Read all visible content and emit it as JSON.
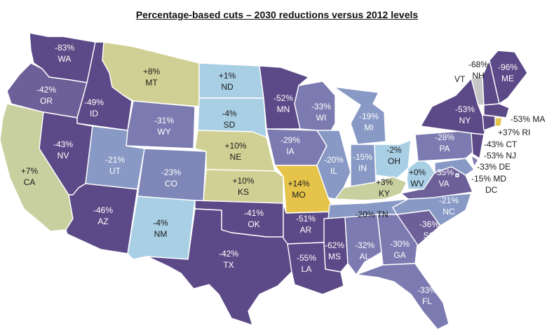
{
  "title": "Percentage-based cuts – 2030 reductions versus 2012 levels",
  "colors": {
    "very_dark": "#5b4a87",
    "dark": "#6d5f98",
    "medium": "#7f82b7",
    "light_blue": "#a9cfe5",
    "olive": "#d1d094",
    "gold": "#e6c44a",
    "gray": "#c6c6c6",
    "border": "#ffffff"
  },
  "states": [
    {
      "abbr": "WA",
      "value": "-83%",
      "color": "#5b4a87"
    },
    {
      "abbr": "OR",
      "value": "-42%",
      "color": "#6d5f98"
    },
    {
      "abbr": "CA",
      "value": "+7%",
      "color": "#c9d0a0"
    },
    {
      "abbr": "ID",
      "value": "-49%",
      "color": "#5b4a87"
    },
    {
      "abbr": "NV",
      "value": "-43%",
      "color": "#5b4a87"
    },
    {
      "abbr": "MT",
      "value": "+8%",
      "color": "#d1d094"
    },
    {
      "abbr": "WY",
      "value": "-31%",
      "color": "#7c7bb1"
    },
    {
      "abbr": "UT",
      "value": "-21%",
      "color": "#8799c4"
    },
    {
      "abbr": "AZ",
      "value": "-46%",
      "color": "#5b4a87"
    },
    {
      "abbr": "CO",
      "value": "-23%",
      "color": "#7f87b8"
    },
    {
      "abbr": "NM",
      "value": "-4%",
      "color": "#a9cfe5"
    },
    {
      "abbr": "ND",
      "value": "+1%",
      "color": "#a9cfe5"
    },
    {
      "abbr": "SD",
      "value": "-4%",
      "color": "#a9cfe5"
    },
    {
      "abbr": "NE",
      "value": "+10%",
      "color": "#d1d094"
    },
    {
      "abbr": "KS",
      "value": "+10%",
      "color": "#d1d094"
    },
    {
      "abbr": "OK",
      "value": "-41%",
      "color": "#5b4a87"
    },
    {
      "abbr": "TX",
      "value": "-42%",
      "color": "#5b4a87"
    },
    {
      "abbr": "MN",
      "value": "-52%",
      "color": "#5b4a87"
    },
    {
      "abbr": "IA",
      "value": "-29%",
      "color": "#7c7bb1"
    },
    {
      "abbr": "MO",
      "value": "+14%",
      "color": "#e6c44a"
    },
    {
      "abbr": "AR",
      "value": "-51%",
      "color": "#5b4a87"
    },
    {
      "abbr": "LA",
      "value": "-55%",
      "color": "#5b4a87"
    },
    {
      "abbr": "WI",
      "value": "-33%",
      "color": "#7c7bb1"
    },
    {
      "abbr": "IL",
      "value": "-20%",
      "color": "#8799c4"
    },
    {
      "abbr": "MI",
      "value": "-19%",
      "color": "#8799c4"
    },
    {
      "abbr": "IN",
      "value": "-15%",
      "color": "#8799c4"
    },
    {
      "abbr": "OH",
      "value": "-2%",
      "color": "#a9cfe5"
    },
    {
      "abbr": "KY",
      "value": "+3%",
      "color": "#c9d0a0"
    },
    {
      "abbr": "TN",
      "value": "-20% TN",
      "color": "#8799c4"
    },
    {
      "abbr": "MS",
      "value": "-62%",
      "color": "#5b4a87"
    },
    {
      "abbr": "AL",
      "value": "-32%",
      "color": "#7c7bb1"
    },
    {
      "abbr": "GA",
      "value": "-30%",
      "color": "#7c7bb1"
    },
    {
      "abbr": "FL",
      "value": "-33%",
      "color": "#7c7bb1"
    },
    {
      "abbr": "SC",
      "value": "-36%",
      "color": "#6d5f98"
    },
    {
      "abbr": "NC",
      "value": "-21%",
      "color": "#8799c4"
    },
    {
      "abbr": "VA",
      "value": "-35%",
      "color": "#6d5f98"
    },
    {
      "abbr": "WV",
      "value": "+0%",
      "color": "#a9cfe5"
    },
    {
      "abbr": "PA",
      "value": "-28%",
      "color": "#7c7bb1"
    },
    {
      "abbr": "NY",
      "value": "-53%",
      "color": "#5b4a87"
    },
    {
      "abbr": "VT",
      "value": "",
      "color": "#c6c6c6"
    },
    {
      "abbr": "NH",
      "value": "-68%",
      "color": "#5b4a87"
    },
    {
      "abbr": "ME",
      "value": "-96%",
      "color": "#5b4a87"
    },
    {
      "abbr": "MA",
      "value": "-53%",
      "color": "#5b4a87"
    },
    {
      "abbr": "RI",
      "value": "+37%",
      "color": "#e6c44a"
    },
    {
      "abbr": "CT",
      "value": "-43%",
      "color": "#5b4a87"
    },
    {
      "abbr": "NJ",
      "value": "-53%",
      "color": "#5b4a87"
    },
    {
      "abbr": "DE",
      "value": "-33%",
      "color": "#7c7bb1"
    },
    {
      "abbr": "MD",
      "value": "-15%",
      "color": "#8799c4"
    },
    {
      "abbr": "DC",
      "value": "",
      "color": "#8799c4"
    }
  ],
  "external_labels": {
    "MA": "-53% MA",
    "RI": "+37% RI",
    "CT": "-43% CT",
    "NJ": "-53% NJ",
    "DE": "-33% DE",
    "MD": "-15% MD",
    "DC": "DC",
    "VT": "VT"
  }
}
